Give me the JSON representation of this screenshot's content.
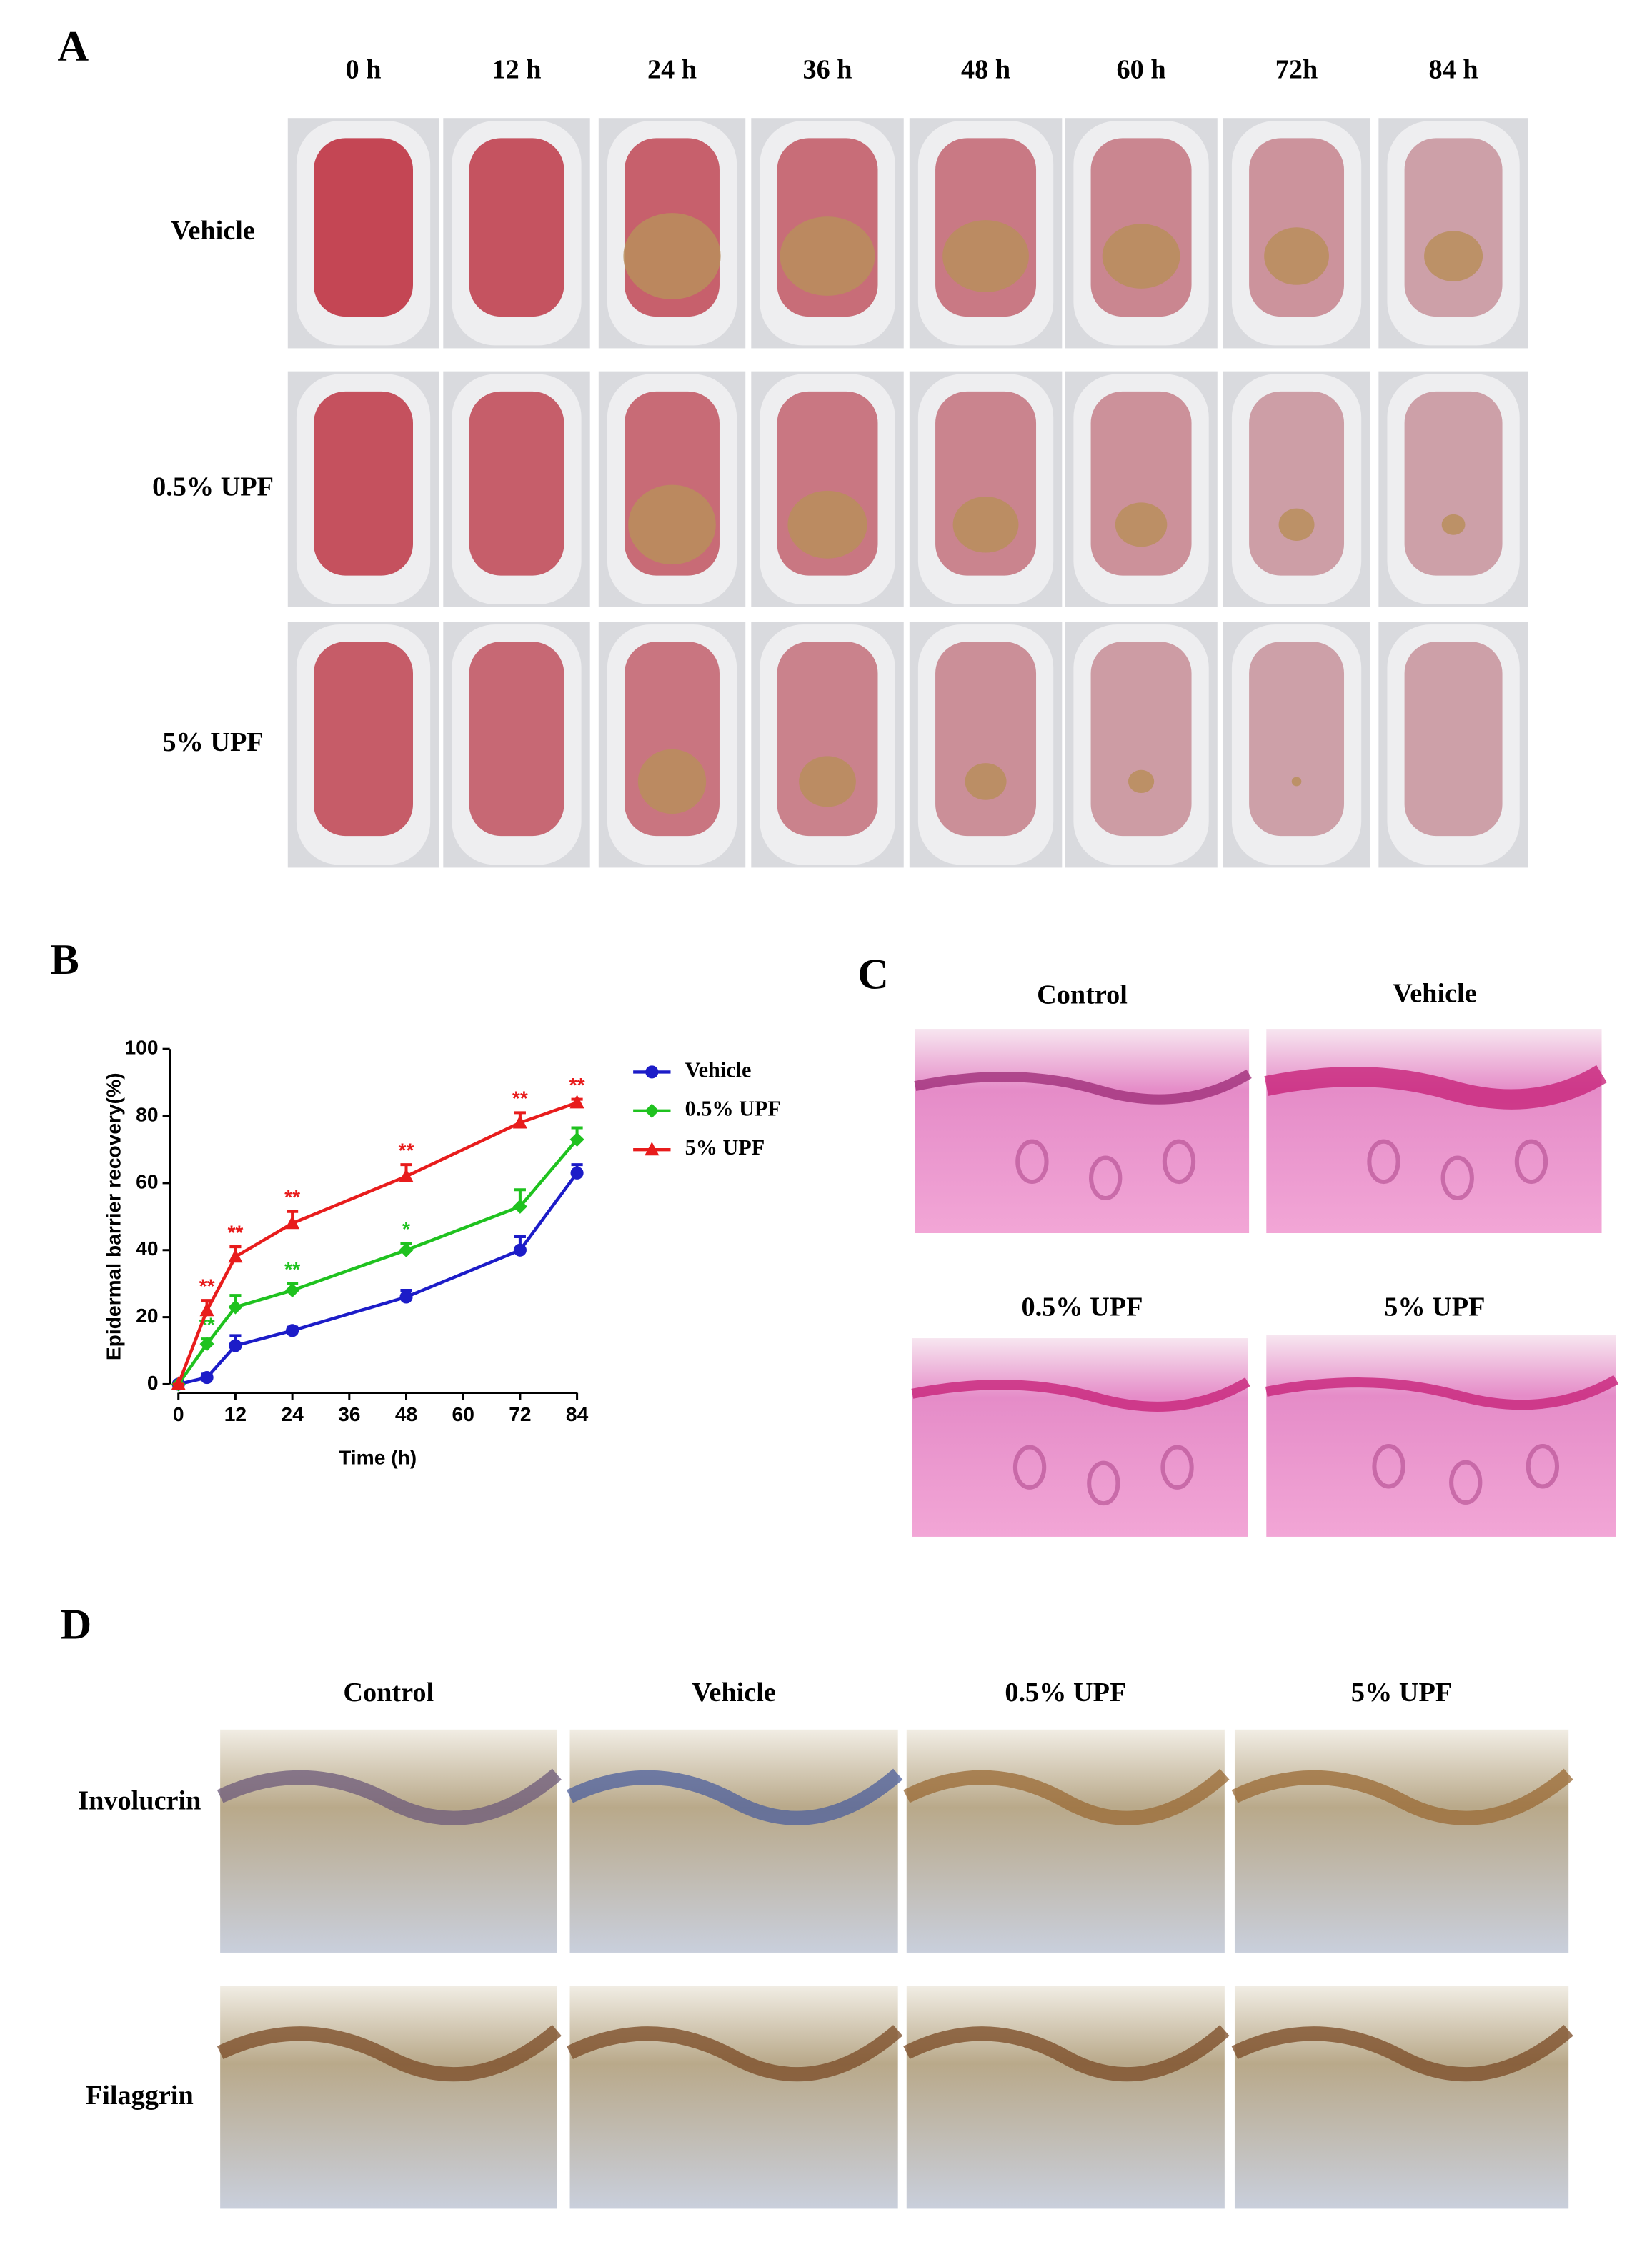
{
  "panel_a": {
    "label": "A",
    "columns": [
      "0 h",
      "12 h",
      "24 h",
      "36 h",
      "48 h",
      "60 h",
      "72h",
      "84 h"
    ],
    "rows": [
      "Vehicle",
      "0.5% UPF",
      "5% UPF"
    ]
  },
  "chart_data": {
    "type": "line",
    "panel_label": "B",
    "xlabel": "Time (h)",
    "ylabel": "Epidermal barrier recovery(%)",
    "x": [
      0,
      6,
      12,
      24,
      48,
      72,
      84
    ],
    "xlim": [
      0,
      84
    ],
    "xticks": [
      0,
      12,
      24,
      36,
      48,
      60,
      72,
      84
    ],
    "ylim": [
      0,
      100
    ],
    "yticks": [
      0,
      20,
      40,
      60,
      80,
      100
    ],
    "grid": false,
    "series": [
      {
        "name": "Vehicle",
        "color": "#1c1cc8",
        "marker": "circle",
        "values": [
          0,
          2,
          11.5,
          16,
          26,
          40,
          63
        ],
        "errors": [
          0,
          1,
          3,
          1,
          2,
          4,
          2.5
        ]
      },
      {
        "name": "0.5% UPF",
        "color": "#1fc21f",
        "marker": "diamond",
        "values": [
          0,
          12,
          23,
          28,
          40,
          53,
          73
        ],
        "errors": [
          0,
          1.5,
          3.5,
          2,
          2,
          5,
          3.5
        ],
        "significance": [
          null,
          "**",
          null,
          "**",
          "*",
          null,
          null
        ]
      },
      {
        "name": "5% UPF",
        "color": "#e81c1c",
        "marker": "triangle",
        "values": [
          0,
          22,
          38,
          48,
          62,
          78,
          84
        ],
        "errors": [
          0,
          3,
          3,
          3.5,
          3.5,
          3,
          1
        ],
        "significance": [
          null,
          "**",
          "**",
          "**",
          "**",
          "**",
          "**"
        ]
      }
    ]
  },
  "panel_c": {
    "label": "C",
    "titles": [
      "Control",
      "Vehicle",
      "0.5% UPF",
      "5% UPF"
    ]
  },
  "panel_d": {
    "label": "D",
    "columns": [
      "Control",
      "Vehicle",
      "0.5% UPF",
      "5% UPF"
    ],
    "rows": [
      "Involucrin",
      "Filaggrin"
    ]
  }
}
